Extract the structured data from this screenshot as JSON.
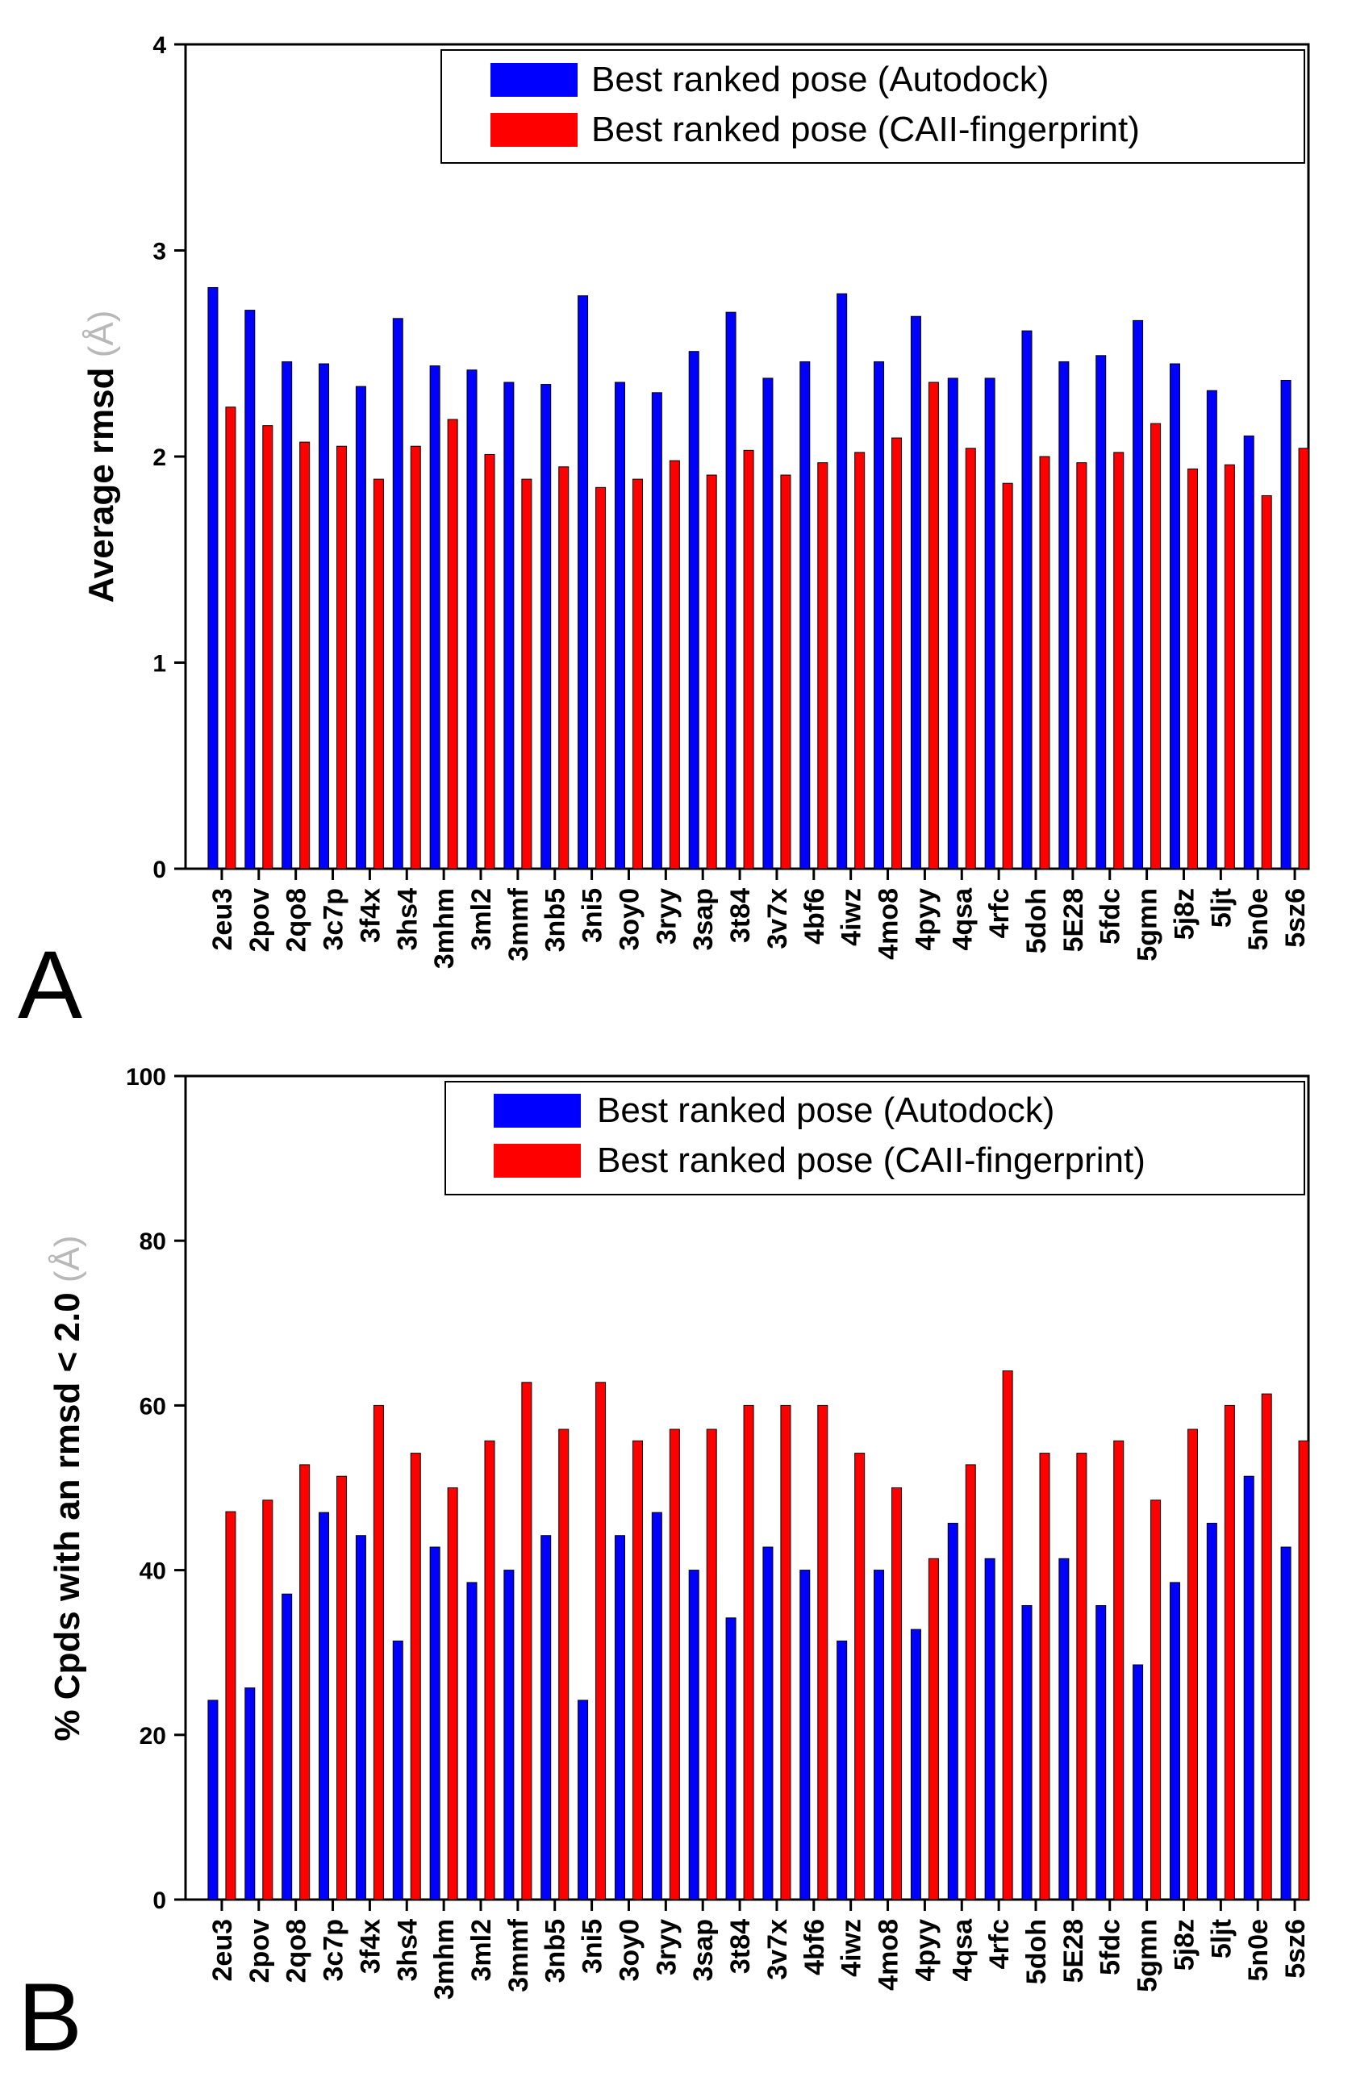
{
  "colors": {
    "autodock": "#0000ff",
    "fingerprint": "#ff0000",
    "axis": "#000000"
  },
  "chart_data": [
    {
      "type": "bar",
      "panel_label": "A",
      "ylabel": "Average rmsd",
      "ylabel_unit": "(Å)",
      "ylim": [
        0,
        4
      ],
      "yticks": [
        0,
        1,
        2,
        3,
        4
      ],
      "legend_position": "top-right",
      "categories": [
        "2eu3",
        "2pov",
        "2qo8",
        "3c7p",
        "3f4x",
        "3hs4",
        "3mhm",
        "3ml2",
        "3mmf",
        "3nb5",
        "3ni5",
        "3oy0",
        "3ryy",
        "3sap",
        "3t84",
        "3v7x",
        "4bf6",
        "4iwz",
        "4mo8",
        "4pyy",
        "4qsa",
        "4rfc",
        "5doh",
        "5E28",
        "5fdc",
        "5gmn",
        "5j8z",
        "5ljt",
        "5n0e",
        "5sz6"
      ],
      "series": [
        {
          "name": "Best ranked pose (Autodock)",
          "color_key": "autodock",
          "values": [
            2.82,
            2.71,
            2.46,
            2.45,
            2.34,
            2.67,
            2.44,
            2.42,
            2.36,
            2.35,
            2.78,
            2.36,
            2.31,
            2.51,
            2.7,
            2.38,
            2.46,
            2.79,
            2.46,
            2.68,
            2.38,
            2.38,
            2.61,
            2.46,
            2.49,
            2.66,
            2.45,
            2.32,
            2.1,
            2.37
          ]
        },
        {
          "name": "Best ranked pose (CAII-fingerprint)",
          "color_key": "fingerprint",
          "values": [
            2.24,
            2.15,
            2.07,
            2.05,
            1.89,
            2.05,
            2.18,
            2.01,
            1.89,
            1.95,
            1.85,
            1.89,
            1.98,
            1.91,
            2.03,
            1.91,
            1.97,
            2.02,
            2.09,
            2.36,
            2.04,
            1.87,
            2.0,
            1.97,
            2.02,
            2.16,
            1.94,
            1.96,
            1.81,
            2.04
          ]
        }
      ]
    },
    {
      "type": "bar",
      "panel_label": "B",
      "ylabel": "% Cpds with an rmsd < 2.0",
      "ylabel_unit": "(Å)",
      "ylim": [
        0,
        100
      ],
      "yticks": [
        0,
        20,
        40,
        60,
        80,
        100
      ],
      "legend_position": "top-right",
      "categories": [
        "2eu3",
        "2pov",
        "2qo8",
        "3c7p",
        "3f4x",
        "3hs4",
        "3mhm",
        "3ml2",
        "3mmf",
        "3nb5",
        "3ni5",
        "3oy0",
        "3ryy",
        "3sap",
        "3t84",
        "3v7x",
        "4bf6",
        "4iwz",
        "4mo8",
        "4pyy",
        "4qsa",
        "4rfc",
        "5doh",
        "5E28",
        "5fdc",
        "5gmn",
        "5j8z",
        "5ljt",
        "5n0e",
        "5sz6"
      ],
      "series": [
        {
          "name": "Best ranked pose (Autodock)",
          "color_key": "autodock",
          "values": [
            24.2,
            25.7,
            37.1,
            47.0,
            44.2,
            31.4,
            42.8,
            38.5,
            40.0,
            44.2,
            24.2,
            44.2,
            47.0,
            40.0,
            34.2,
            42.8,
            40.0,
            31.4,
            40.0,
            32.8,
            45.7,
            41.4,
            35.7,
            41.4,
            35.7,
            28.5,
            38.5,
            45.7,
            51.4,
            42.8
          ]
        },
        {
          "name": "Best ranked pose (CAII-fingerprint)",
          "color_key": "fingerprint",
          "values": [
            47.1,
            48.5,
            52.8,
            51.4,
            60.0,
            54.2,
            50.0,
            55.7,
            62.8,
            57.1,
            62.8,
            55.7,
            57.1,
            57.1,
            60.0,
            60.0,
            60.0,
            54.2,
            50.0,
            41.4,
            52.8,
            64.2,
            54.2,
            54.2,
            55.7,
            48.5,
            57.1,
            60.0,
            61.4,
            55.7
          ]
        }
      ]
    }
  ]
}
